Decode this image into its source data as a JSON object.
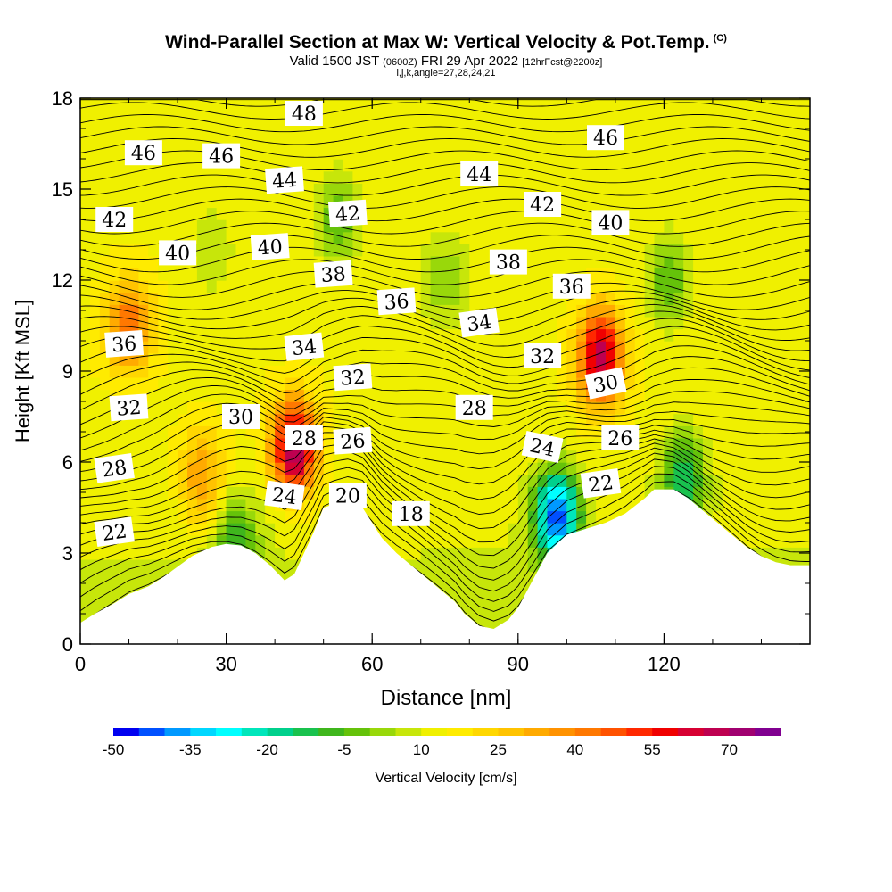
{
  "title": {
    "main": "Wind-Parallel Section at Max W: Vertical Velocity & Pot.Temp.",
    "mark": "(C)",
    "valid_prefix": "Valid 1500 JST",
    "valid_small": "(0600Z)",
    "valid_rest": "FRI 29 Apr 2022",
    "forecast": "[12hrFcst@2200z]",
    "indices": "i,j,k,angle=27,28,24,21"
  },
  "chart_data": {
    "type": "heatmap",
    "xlabel": "Distance [nm]",
    "ylabel": "Height [Kft MSL]",
    "xlim": [
      0,
      150
    ],
    "ylim": [
      0,
      18
    ],
    "x_ticks": [
      "0",
      "30",
      "60",
      "90",
      "120"
    ],
    "x_tick_values": [
      0,
      30,
      60,
      90,
      120
    ],
    "y_ticks": [
      "0",
      "3",
      "6",
      "9",
      "12",
      "15",
      "18"
    ],
    "y_tick_values": [
      0,
      3,
      6,
      9,
      12,
      15,
      18
    ],
    "colorbar": {
      "label": "Vertical Velocity [cm/s]",
      "min": -50,
      "max": 80,
      "step": 5,
      "tick_labels": [
        "-50",
        "-35",
        "-20",
        "-5",
        "10",
        "25",
        "40",
        "55",
        "70"
      ],
      "colors": [
        "#0000f0",
        "#0050ff",
        "#0099ff",
        "#00d7ff",
        "#00ffff",
        "#00e6bb",
        "#00d08c",
        "#19c24e",
        "#3fb61d",
        "#65c20a",
        "#99d80a",
        "#c7e60a",
        "#f0f000",
        "#ffeb00",
        "#ffd700",
        "#ffc300",
        "#ffaa00",
        "#ff9200",
        "#ff7800",
        "#ff5200",
        "#ff2800",
        "#f00000",
        "#d70032",
        "#be0050",
        "#a00070",
        "#800090"
      ]
    },
    "w_features": [
      {
        "x": 44,
        "y": 6.5,
        "w": 75,
        "note": "strong updraft core"
      },
      {
        "x": 10,
        "y": 10.5,
        "w": 45
      },
      {
        "x": 107,
        "y": 9.5,
        "w": 70,
        "note": "strong updraft core"
      },
      {
        "x": 98,
        "y": 4.2,
        "w": -45,
        "note": "downdraft core"
      },
      {
        "x": 25,
        "y": 5.5,
        "w": 35
      },
      {
        "x": 75,
        "y": 12,
        "w": 0
      },
      {
        "x": 53,
        "y": 14,
        "w": -5
      },
      {
        "x": 27,
        "y": 13,
        "w": 5
      },
      {
        "x": 121,
        "y": 12,
        "w": -5
      },
      {
        "x": 124,
        "y": 5.5,
        "w": -15
      },
      {
        "x": 32,
        "y": 3.3,
        "w": -10
      }
    ],
    "terrain_kft": [
      [
        0,
        0.7
      ],
      [
        3,
        1.0
      ],
      [
        7,
        1.35
      ],
      [
        10,
        1.65
      ],
      [
        14,
        1.9
      ],
      [
        17,
        2.2
      ],
      [
        20,
        2.55
      ],
      [
        23,
        2.9
      ],
      [
        25,
        3.05
      ],
      [
        27,
        3.2
      ],
      [
        30,
        3.3
      ],
      [
        33,
        3.25
      ],
      [
        36,
        3.0
      ],
      [
        39,
        2.6
      ],
      [
        42,
        2.1
      ],
      [
        44,
        2.3
      ],
      [
        46,
        3.0
      ],
      [
        48,
        3.7
      ],
      [
        50,
        4.5
      ],
      [
        52,
        4.6
      ],
      [
        55,
        4.7
      ],
      [
        58,
        4.5
      ],
      [
        60,
        4.0
      ],
      [
        62,
        3.5
      ],
      [
        65,
        3.0
      ],
      [
        68,
        2.6
      ],
      [
        71,
        2.2
      ],
      [
        74,
        1.8
      ],
      [
        77,
        1.4
      ],
      [
        79,
        1.0
      ],
      [
        82,
        0.6
      ],
      [
        85,
        0.5
      ],
      [
        88,
        0.8
      ],
      [
        90,
        1.2
      ],
      [
        92,
        1.8
      ],
      [
        94,
        2.4
      ],
      [
        96,
        3.0
      ],
      [
        98,
        3.3
      ],
      [
        100,
        3.6
      ],
      [
        104,
        3.8
      ],
      [
        108,
        4.0
      ],
      [
        112,
        4.3
      ],
      [
        116,
        4.8
      ],
      [
        118,
        5.1
      ],
      [
        122,
        5.1
      ],
      [
        125,
        4.8
      ],
      [
        128,
        4.4
      ],
      [
        131,
        4.0
      ],
      [
        134,
        3.6
      ],
      [
        137,
        3.2
      ],
      [
        140,
        2.9
      ],
      [
        143,
        2.7
      ],
      [
        146,
        2.6
      ],
      [
        150,
        2.6
      ]
    ],
    "theta_contours": {
      "label_values": [
        "18",
        "20",
        "22",
        "24",
        "26",
        "28",
        "30",
        "32",
        "34",
        "36",
        "38",
        "40",
        "42",
        "44",
        "46",
        "48"
      ],
      "labels": [
        {
          "x": 7,
          "y": 3.7,
          "value": "22",
          "rot": -8
        },
        {
          "x": 7,
          "y": 5.8,
          "value": "28",
          "rot": -8
        },
        {
          "x": 10,
          "y": 7.8,
          "value": "32",
          "rot": -4
        },
        {
          "x": 9,
          "y": 9.9,
          "value": "36",
          "rot": -4
        },
        {
          "x": 7,
          "y": 14.0,
          "value": "42",
          "rot": 0
        },
        {
          "x": 13,
          "y": 16.2,
          "value": "46",
          "rot": 0
        },
        {
          "x": 20,
          "y": 12.9,
          "value": "40",
          "rot": 0
        },
        {
          "x": 29,
          "y": 16.1,
          "value": "46",
          "rot": 0
        },
        {
          "x": 33,
          "y": 7.5,
          "value": "30",
          "rot": 0
        },
        {
          "x": 42,
          "y": 4.9,
          "value": "24",
          "rot": 8
        },
        {
          "x": 46,
          "y": 6.8,
          "value": "28",
          "rot": 0
        },
        {
          "x": 46,
          "y": 9.8,
          "value": "34",
          "rot": -6
        },
        {
          "x": 39,
          "y": 13.1,
          "value": "40",
          "rot": -4
        },
        {
          "x": 42,
          "y": 15.3,
          "value": "44",
          "rot": -4
        },
        {
          "x": 46,
          "y": 17.5,
          "value": "48",
          "rot": 0
        },
        {
          "x": 52,
          "y": 12.2,
          "value": "38",
          "rot": -4
        },
        {
          "x": 55,
          "y": 14.2,
          "value": "42",
          "rot": -4
        },
        {
          "x": 56,
          "y": 8.8,
          "value": "32",
          "rot": -4
        },
        {
          "x": 56,
          "y": 6.7,
          "value": "26",
          "rot": -4
        },
        {
          "x": 55,
          "y": 4.9,
          "value": "20",
          "rot": 0
        },
        {
          "x": 68,
          "y": 4.3,
          "value": "18",
          "rot": 0
        },
        {
          "x": 65,
          "y": 11.3,
          "value": "36",
          "rot": -4
        },
        {
          "x": 81,
          "y": 7.8,
          "value": "28",
          "rot": 0
        },
        {
          "x": 82,
          "y": 10.6,
          "value": "34",
          "rot": -8
        },
        {
          "x": 82,
          "y": 15.5,
          "value": "44",
          "rot": 0
        },
        {
          "x": 88,
          "y": 12.6,
          "value": "38",
          "rot": 0
        },
        {
          "x": 95,
          "y": 6.5,
          "value": "24",
          "rot": 12
        },
        {
          "x": 95,
          "y": 9.5,
          "value": "32",
          "rot": 0
        },
        {
          "x": 95,
          "y": 14.5,
          "value": "42",
          "rot": 0
        },
        {
          "x": 101,
          "y": 11.8,
          "value": "36",
          "rot": 0
        },
        {
          "x": 107,
          "y": 5.3,
          "value": "22",
          "rot": -8
        },
        {
          "x": 108,
          "y": 8.6,
          "value": "30",
          "rot": -12
        },
        {
          "x": 111,
          "y": 6.8,
          "value": "26",
          "rot": 0
        },
        {
          "x": 109,
          "y": 13.9,
          "value": "40",
          "rot": 0
        },
        {
          "x": 108,
          "y": 16.7,
          "value": "46",
          "rot": 0
        }
      ]
    }
  }
}
